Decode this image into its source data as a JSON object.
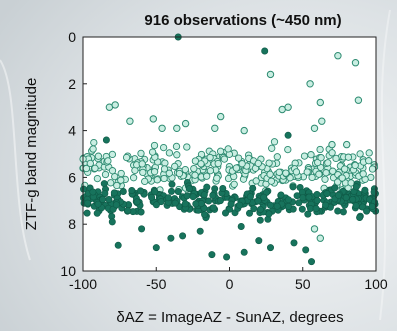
{
  "chart_data": {
    "type": "scatter",
    "title": "916 observations (~450 nm)",
    "xlabel": "δAZ = ImageAZ - SunAZ, degrees",
    "ylabel": "ZTF-g band magnitude",
    "xlim": [
      -100,
      100
    ],
    "ylim": [
      10,
      0
    ],
    "y_reversed": true,
    "x_ticks": [
      "-100",
      "-50",
      "0",
      "50",
      "100"
    ],
    "y_ticks": [
      "0",
      "2",
      "4",
      "6",
      "8",
      "10"
    ],
    "grid": false,
    "legend": "none",
    "colors": {
      "filled": "#17735c",
      "open_stroke": "#2c8a70",
      "open_fill": "#c9eee2"
    },
    "series": [
      {
        "style": "open",
        "points": [
          [
            -82,
            3.0
          ],
          [
            -78,
            2.9
          ],
          [
            -68,
            3.6
          ],
          [
            -52,
            3.5
          ],
          [
            -46,
            3.9
          ],
          [
            -36,
            3.9
          ],
          [
            -30,
            3.7
          ],
          [
            -6,
            3.4
          ],
          [
            28,
            1.6
          ],
          [
            36,
            3.1
          ],
          [
            40,
            3.0
          ],
          [
            55,
            2.0
          ],
          [
            58,
            3.9
          ],
          [
            62,
            2.8
          ],
          [
            63,
            3.6
          ],
          [
            70,
            4.6
          ],
          [
            74,
            0.8
          ],
          [
            80,
            4.6
          ],
          [
            86,
            1.1
          ],
          [
            88,
            2.7
          ],
          [
            58,
            8.2
          ],
          [
            62,
            8.6
          ],
          [
            -10,
            3.9
          ],
          [
            10,
            4.0
          ]
        ]
      },
      {
        "style": "filled",
        "points": [
          [
            -35,
            0.0
          ],
          [
            24,
            0.6
          ],
          [
            -84,
            4.4
          ],
          [
            40,
            4.2
          ],
          [
            -80,
            7.9
          ],
          [
            -76,
            8.9
          ],
          [
            -60,
            8.2
          ],
          [
            -50,
            9.0
          ],
          [
            -40,
            8.6
          ],
          [
            -32,
            8.5
          ],
          [
            -20,
            8.3
          ],
          [
            -12,
            9.3
          ],
          [
            -2,
            9.4
          ],
          [
            10,
            9.2
          ],
          [
            20,
            8.7
          ],
          [
            28,
            9.0
          ],
          [
            44,
            8.8
          ],
          [
            52,
            9.1
          ],
          [
            56,
            9.6
          ],
          [
            8,
            8.1
          ]
        ]
      }
    ]
  }
}
